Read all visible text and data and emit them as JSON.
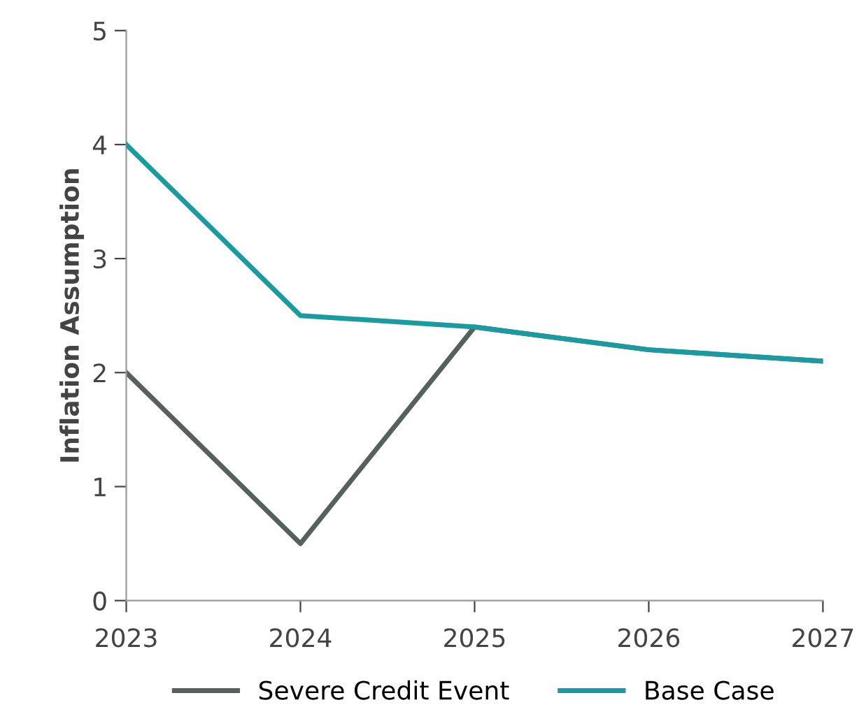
{
  "chart_data": {
    "type": "line",
    "ylabel": "Inflation Assumption",
    "x": [
      2023,
      2024,
      2025,
      2026,
      2027
    ],
    "series": [
      {
        "name": "Severe Credit Event",
        "color": "#56615c",
        "values": [
          2,
          0.5,
          2.4,
          2.2,
          2.1
        ]
      },
      {
        "name": "Base Case",
        "color": "#1a9ba1",
        "values": [
          4,
          2.5,
          2.4,
          2.2,
          2.1
        ]
      }
    ],
    "xlim": [
      2023,
      2027
    ],
    "xticks": [
      2023,
      2024,
      2025,
      2026,
      2027
    ],
    "ylim": [
      0,
      5
    ],
    "yticks": [
      0,
      1,
      2,
      3,
      4,
      5
    ],
    "grid": false,
    "legend": "bottom",
    "marker": "none",
    "line_style": "solid"
  }
}
